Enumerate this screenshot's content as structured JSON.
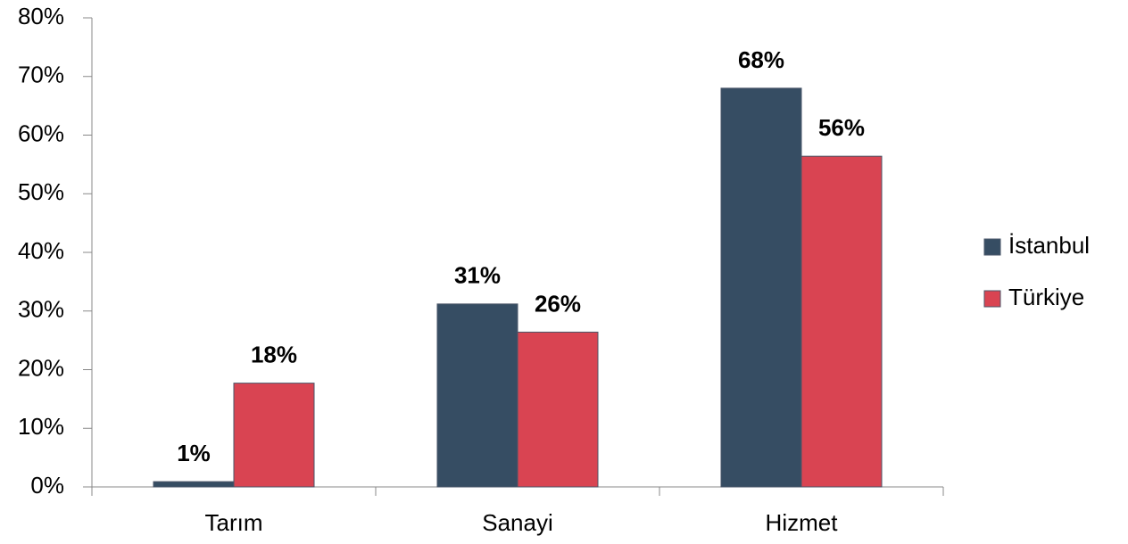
{
  "chart_data": {
    "type": "bar",
    "categories": [
      "Tarım",
      "Sanayi",
      "Hizmet"
    ],
    "series": [
      {
        "name": "İstanbul",
        "color": "#364d63",
        "values": [
          0.9,
          31.2,
          68.0
        ],
        "value_labels": [
          "1%",
          "31%",
          "68%"
        ]
      },
      {
        "name": "Türkiye",
        "color": "#d94452",
        "values": [
          17.7,
          26.4,
          56.4
        ],
        "value_labels": [
          "18%",
          "26%",
          "56%"
        ]
      }
    ],
    "ylim": [
      0,
      80
    ],
    "yticks": [
      {
        "value": 0,
        "label": "0%"
      },
      {
        "value": 10,
        "label": "10%"
      },
      {
        "value": 20,
        "label": "20%"
      },
      {
        "value": 30,
        "label": "30%"
      },
      {
        "value": 40,
        "label": "40%"
      },
      {
        "value": 50,
        "label": "50%"
      },
      {
        "value": 60,
        "label": "60%"
      },
      {
        "value": 70,
        "label": "70%"
      },
      {
        "value": 80,
        "label": "80%"
      }
    ],
    "legend": "right"
  }
}
